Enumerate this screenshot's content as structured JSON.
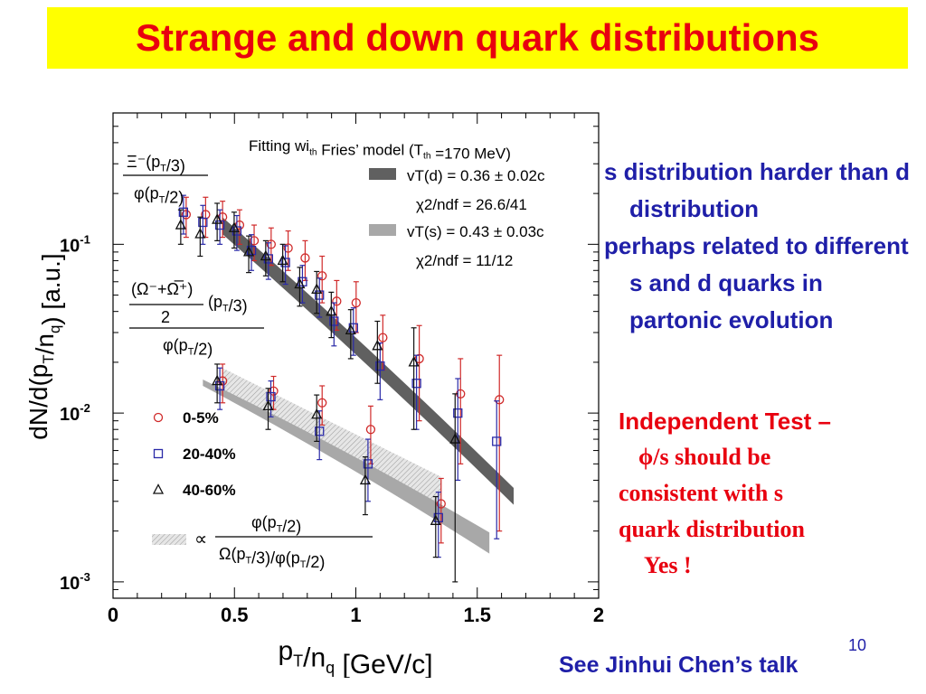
{
  "slide": {
    "title": "Strange and down quark distributions",
    "bullets": [
      "s distribution harder than d distribution",
      "perhaps related to different s and d quarks in partonic evolution"
    ],
    "independent_test": {
      "title": "Independent Test –",
      "lines": [
        "ϕ/s should be",
        "consistent with s",
        "quark distribution"
      ],
      "answer": "Yes !"
    },
    "page_number": "10",
    "footer": "See Jinhui Chen’s talk"
  },
  "chart_data": {
    "type": "scatter",
    "xlabel": "pT/nq [GeV/c]",
    "ylabel": "dN/d(pT/nq) [a.u.]",
    "xlim": [
      0,
      2
    ],
    "ylim": [
      0.0008,
      0.6
    ],
    "y_scale": "log",
    "x_ticks": [
      "0",
      "0.5",
      "1",
      "1.5",
      "2"
    ],
    "y_ticks": [
      "10-1",
      "10-2",
      "10-3"
    ],
    "fit_title": "Fitting with Fries’ model (Tth =170 MeV)",
    "fits": [
      {
        "name": "vT(d) = 0.36 ± 0.02c",
        "chi2": "χ2/ndf = 26.6/41",
        "color": "#606060",
        "band_x": [
          0.45,
          1.65
        ],
        "band_y_start": [
          0.115,
          0.145
        ],
        "band_y_end": [
          0.0035,
          0.0044
        ]
      },
      {
        "name": "vT(s) = 0.43 ± 0.03c",
        "chi2": "χ2/ndf = 11/12",
        "color": "#a8a8a8",
        "band_x": [
          0.37,
          1.55
        ],
        "band_y_start": [
          0.0145,
          0.0158
        ],
        "band_y_end": [
          0.0018,
          0.0024
        ]
      }
    ],
    "hatched_band": {
      "x": [
        0.45,
        1.35
      ],
      "y_lower_start": 0.0135,
      "y_upper_start": 0.0185,
      "y_lower_end": 0.0026,
      "y_upper_end": 0.0042
    },
    "ratio_labels": {
      "xi": {
        "num": "Ξ⁻(pT/3)",
        "den": "φ(pT/2)"
      },
      "omega": {
        "num": "(Ω⁻+Ω̅⁺)",
        "mid": "2",
        "mid_suffix": "(pT/3)",
        "den": "φ(pT/2)"
      },
      "prop": {
        "prefix": "∝",
        "num": "φ(pT/2)",
        "den": "Ω(pT/3)/φ(pT/2)"
      }
    },
    "legend": [
      {
        "label": "0-5%",
        "marker": "circle",
        "color": "#d02a2a"
      },
      {
        "label": "20-40%",
        "marker": "square",
        "color": "#2a2aa8"
      },
      {
        "label": "40-60%",
        "marker": "triangle",
        "color": "#111111"
      }
    ],
    "series": [
      {
        "name": "0-5%",
        "group": "xi",
        "marker": "circle",
        "color": "#d02a2a",
        "x": [
          0.29,
          0.37,
          0.44,
          0.51,
          0.57,
          0.64,
          0.71,
          0.78,
          0.85,
          0.91,
          0.99,
          1.1,
          1.25,
          1.42,
          1.58
        ],
        "y": [
          0.15,
          0.15,
          0.145,
          0.13,
          0.105,
          0.1,
          0.095,
          0.083,
          0.065,
          0.046,
          0.045,
          0.028,
          0.021,
          0.013,
          0.012
        ],
        "err": [
          0.04,
          0.04,
          0.035,
          0.03,
          0.025,
          0.025,
          0.025,
          0.022,
          0.02,
          0.015,
          0.015,
          0.01,
          0.012,
          0.008,
          0.01
        ]
      },
      {
        "name": "20-40%",
        "group": "xi",
        "marker": "square",
        "color": "#2a2aa8",
        "x": [
          0.29,
          0.37,
          0.44,
          0.51,
          0.57,
          0.64,
          0.71,
          0.78,
          0.85,
          0.91,
          0.99,
          1.1,
          1.25,
          1.42,
          1.58
        ],
        "y": [
          0.155,
          0.135,
          0.13,
          0.12,
          0.092,
          0.082,
          0.078,
          0.06,
          0.05,
          0.035,
          0.032,
          0.019,
          0.015,
          0.01,
          0.0068
        ],
        "err": [
          0.04,
          0.035,
          0.03,
          0.028,
          0.022,
          0.02,
          0.02,
          0.015,
          0.013,
          0.01,
          0.01,
          0.007,
          0.007,
          0.006,
          0.005
        ]
      },
      {
        "name": "40-60%",
        "group": "xi",
        "marker": "triangle",
        "color": "#111111",
        "x": [
          0.29,
          0.37,
          0.44,
          0.51,
          0.57,
          0.64,
          0.71,
          0.78,
          0.85,
          0.91,
          0.99,
          1.1,
          1.25,
          1.42
        ],
        "y": [
          0.13,
          0.115,
          0.14,
          0.125,
          0.09,
          0.085,
          0.08,
          0.058,
          0.054,
          0.04,
          0.031,
          0.025,
          0.02,
          0.007
        ],
        "err": [
          0.03,
          0.03,
          0.035,
          0.03,
          0.022,
          0.02,
          0.02,
          0.015,
          0.015,
          0.012,
          0.01,
          0.01,
          0.012,
          0.006
        ]
      },
      {
        "name": "0-5%",
        "group": "omega",
        "marker": "circle",
        "color": "#d02a2a",
        "x": [
          0.44,
          0.65,
          0.85,
          1.05,
          1.34
        ],
        "y": [
          0.0155,
          0.0135,
          0.0115,
          0.008,
          0.0029
        ],
        "err": [
          0.004,
          0.003,
          0.003,
          0.003,
          0.0012
        ]
      },
      {
        "name": "20-40%",
        "group": "omega",
        "marker": "square",
        "color": "#2a2aa8",
        "x": [
          0.44,
          0.65,
          0.85,
          1.05,
          1.34
        ],
        "y": [
          0.0145,
          0.0125,
          0.0078,
          0.005,
          0.0024
        ],
        "err": [
          0.004,
          0.003,
          0.0025,
          0.002,
          0.001
        ]
      },
      {
        "name": "40-60%",
        "group": "omega",
        "marker": "triangle",
        "color": "#111111",
        "x": [
          0.44,
          0.65,
          0.85,
          1.05,
          1.34
        ],
        "y": [
          0.0155,
          0.011,
          0.0098,
          0.004,
          0.0023
        ],
        "err": [
          0.004,
          0.003,
          0.003,
          0.0015,
          0.0009
        ]
      }
    ]
  }
}
